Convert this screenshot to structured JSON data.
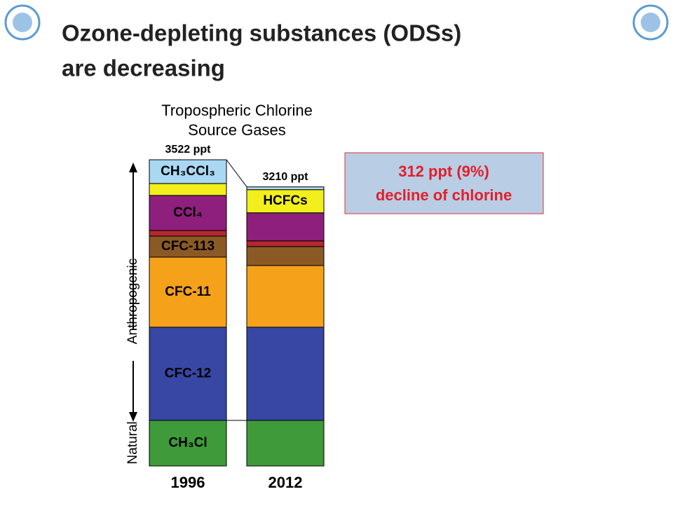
{
  "slide": {
    "title_lines": [
      "Ozone-depleting substances (ODSs)",
      "are decreasing"
    ]
  },
  "chart_data": {
    "type": "stacked-bar",
    "title": [
      "Tropospheric Chlorine",
      "Source Gases"
    ],
    "categories": [
      "1996",
      "2012"
    ],
    "totals": [
      3522,
      3210
    ],
    "total_labels": [
      "3522 ppt",
      "3210 ppt"
    ],
    "side_labels": [
      "Anthropogenic",
      "Natural"
    ],
    "annotation": [
      "312 ppt (9%)",
      "decline of chlorine"
    ],
    "series": [
      {
        "name": "CH₃Cl",
        "color": "#3f9a3a",
        "values": [
          524,
          524
        ]
      },
      {
        "name": "CFC-12",
        "color": "#3747a3",
        "values": [
          1072,
          1072
        ]
      },
      {
        "name": "CFC-11",
        "color": "#f5a11a",
        "values": [
          806,
          710
        ]
      },
      {
        "name": "CFC-113",
        "color": "#8b5a24",
        "values": [
          242,
          218
        ]
      },
      {
        "color": "#b5282f",
        "values": [
          65,
          65
        ]
      },
      {
        "name": "CCl₄",
        "color": "#8e1f7c",
        "values": [
          403,
          323
        ]
      },
      {
        "name": "HCFCs",
        "color": "#f2ef1c",
        "values": [
          137,
          266
        ]
      },
      {
        "name": "CH₃CCl₃",
        "color": "#a9d8f3",
        "values": [
          273,
          32
        ]
      }
    ]
  }
}
